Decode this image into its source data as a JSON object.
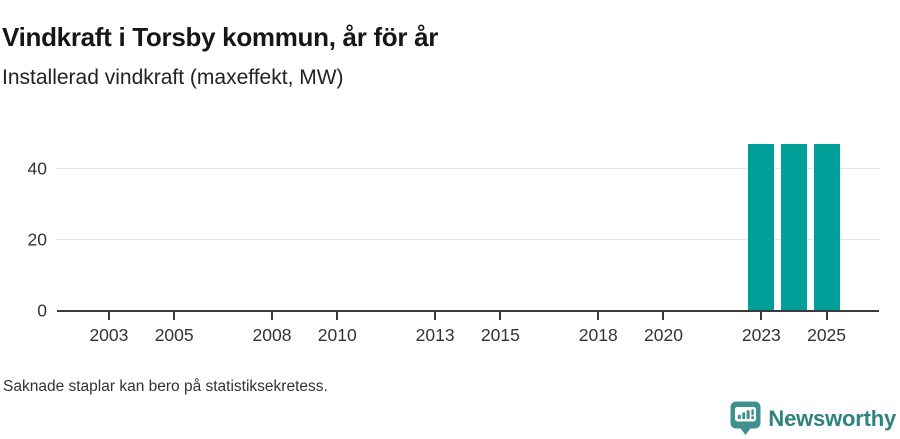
{
  "header": {
    "title": "Vindkraft i Torsby kommun, år för år",
    "subtitle": "Installerad vindkraft (maxeffekt, MW)"
  },
  "footer": {
    "note": "Saknade staplar kan bero på statistiksekretess.",
    "brand": "Newsworthy"
  },
  "colors": {
    "bar": "#00a099",
    "axis": "#3b3b3b",
    "grid": "#e4e4e4",
    "brand_icon": "#3e918e",
    "brand_text": "#2f827f"
  },
  "chart_data": {
    "type": "bar",
    "title": "Vindkraft i Torsby kommun, år för år",
    "subtitle": "Installerad vindkraft (maxeffekt, MW)",
    "unit": "MW",
    "categories": [
      2002,
      2003,
      2004,
      2005,
      2006,
      2007,
      2008,
      2009,
      2010,
      2011,
      2012,
      2013,
      2014,
      2015,
      2016,
      2017,
      2018,
      2019,
      2020,
      2021,
      2022,
      2023,
      2024,
      2025,
      2026
    ],
    "values": [
      null,
      null,
      null,
      null,
      null,
      null,
      null,
      null,
      null,
      null,
      null,
      null,
      null,
      null,
      null,
      null,
      null,
      null,
      null,
      null,
      null,
      47,
      47,
      47,
      null
    ],
    "x_tick_labels": [
      "2003",
      "2005",
      "2008",
      "2010",
      "2013",
      "2015",
      "2018",
      "2020",
      "2023",
      "2025"
    ],
    "y_ticks": [
      0,
      20,
      40
    ],
    "ylim": [
      0,
      47
    ],
    "grid": "horizontal-only",
    "legend": "none",
    "bar_color": "#00a099",
    "annotation": "Saknade staplar kan bero på statistiksekretess."
  }
}
